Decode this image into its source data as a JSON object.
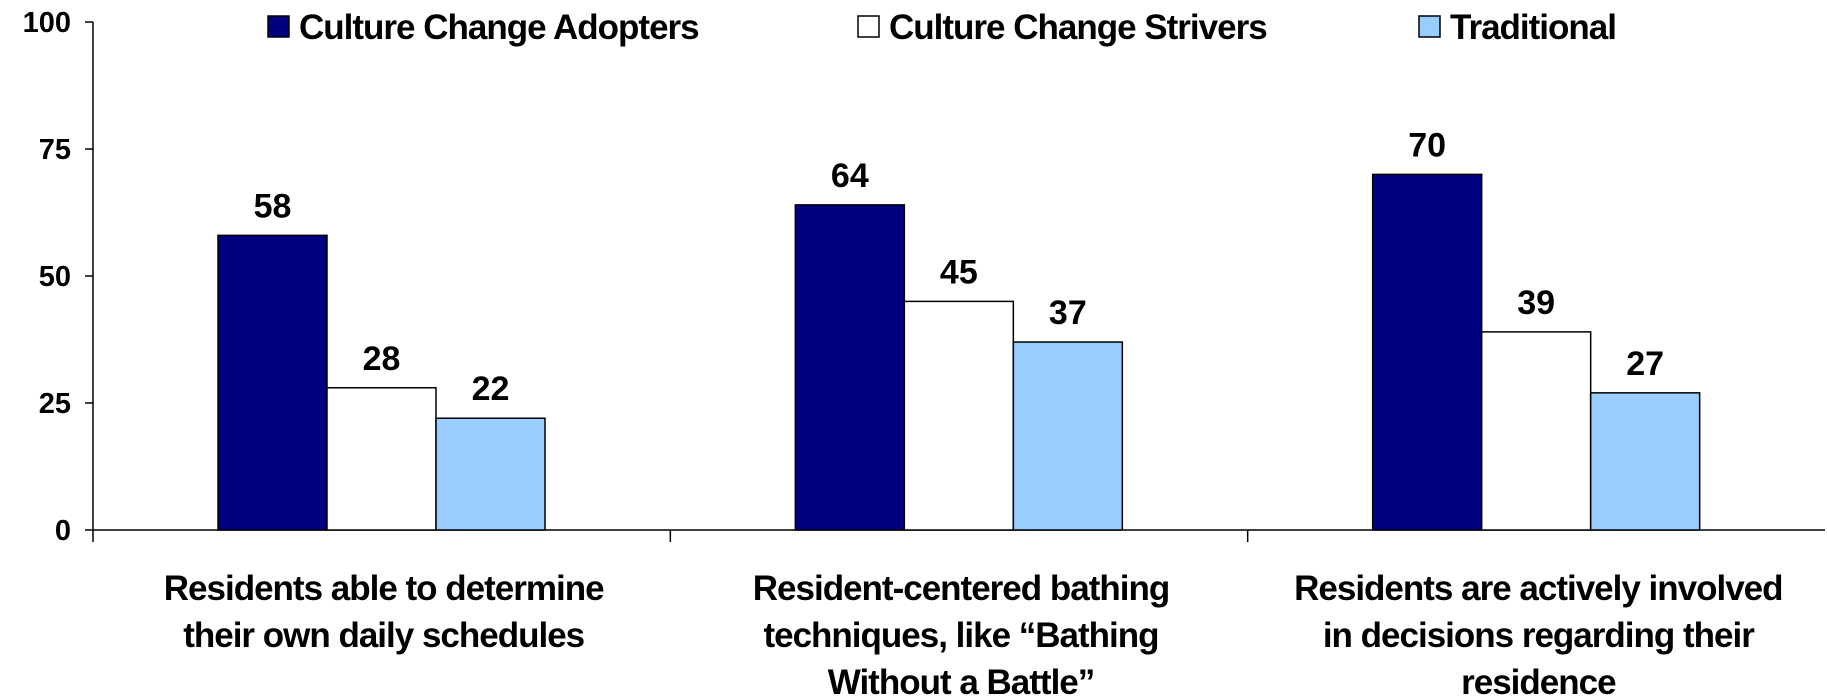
{
  "chart_data": {
    "type": "bar",
    "title": "",
    "xlabel": "",
    "ylabel": "",
    "ylim": [
      0,
      100
    ],
    "yticks": [
      "0",
      "25",
      "50",
      "75",
      "100"
    ],
    "grid": false,
    "legend_position": "top",
    "categories": [
      [
        "Residents able to determine",
        "their own daily schedules"
      ],
      [
        "Resident-centered bathing",
        "techniques, like “Bathing",
        "Without a Battle”"
      ],
      [
        "Residents are actively involved",
        "in decisions regarding their",
        "residence"
      ]
    ],
    "series": [
      {
        "name": "Culture Change Adopters",
        "color": "#000080",
        "values": [
          58,
          64,
          70
        ]
      },
      {
        "name": "Culture Change Strivers",
        "color": "#ffffff",
        "values": [
          28,
          45,
          39
        ]
      },
      {
        "name": "Traditional",
        "color": "#99ccff",
        "values": [
          22,
          37,
          27
        ]
      }
    ]
  }
}
